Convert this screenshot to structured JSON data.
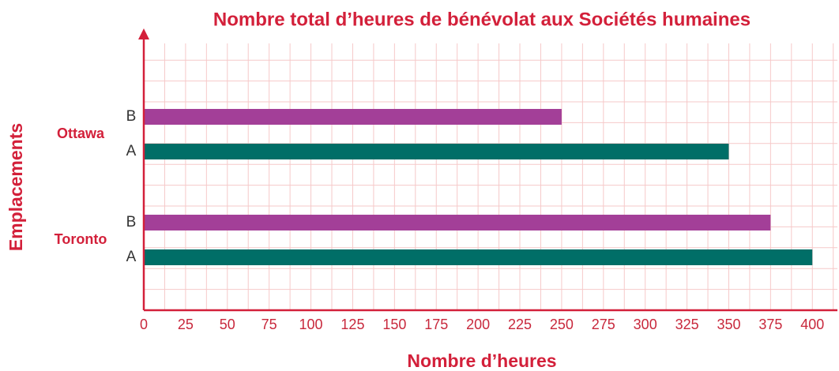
{
  "chart_data": {
    "type": "barh",
    "title": "Nombre total d’heures de bénévolat aux Sociétés humaines",
    "xlabel": "Nombre d’heures",
    "ylabel": "Emplacements",
    "categories": [
      "Ottawa",
      "Toronto"
    ],
    "series": [
      {
        "name": "A",
        "color": "#006e67",
        "values": [
          350,
          400
        ]
      },
      {
        "name": "B",
        "color": "#a33f98",
        "values": [
          250,
          375
        ]
      }
    ],
    "xlim": [
      0,
      415
    ],
    "xticks": [
      0,
      25,
      50,
      75,
      100,
      125,
      150,
      175,
      200,
      225,
      250,
      275,
      300,
      325,
      350,
      375,
      400
    ],
    "xminorticks": [
      12.5,
      37.5,
      62.5,
      87.5,
      112.5,
      137.5,
      162.5,
      187.5,
      212.5,
      237.5,
      262.5,
      287.5,
      312.5,
      337.5,
      362.5,
      387.5,
      412.5
    ],
    "grid": true
  }
}
